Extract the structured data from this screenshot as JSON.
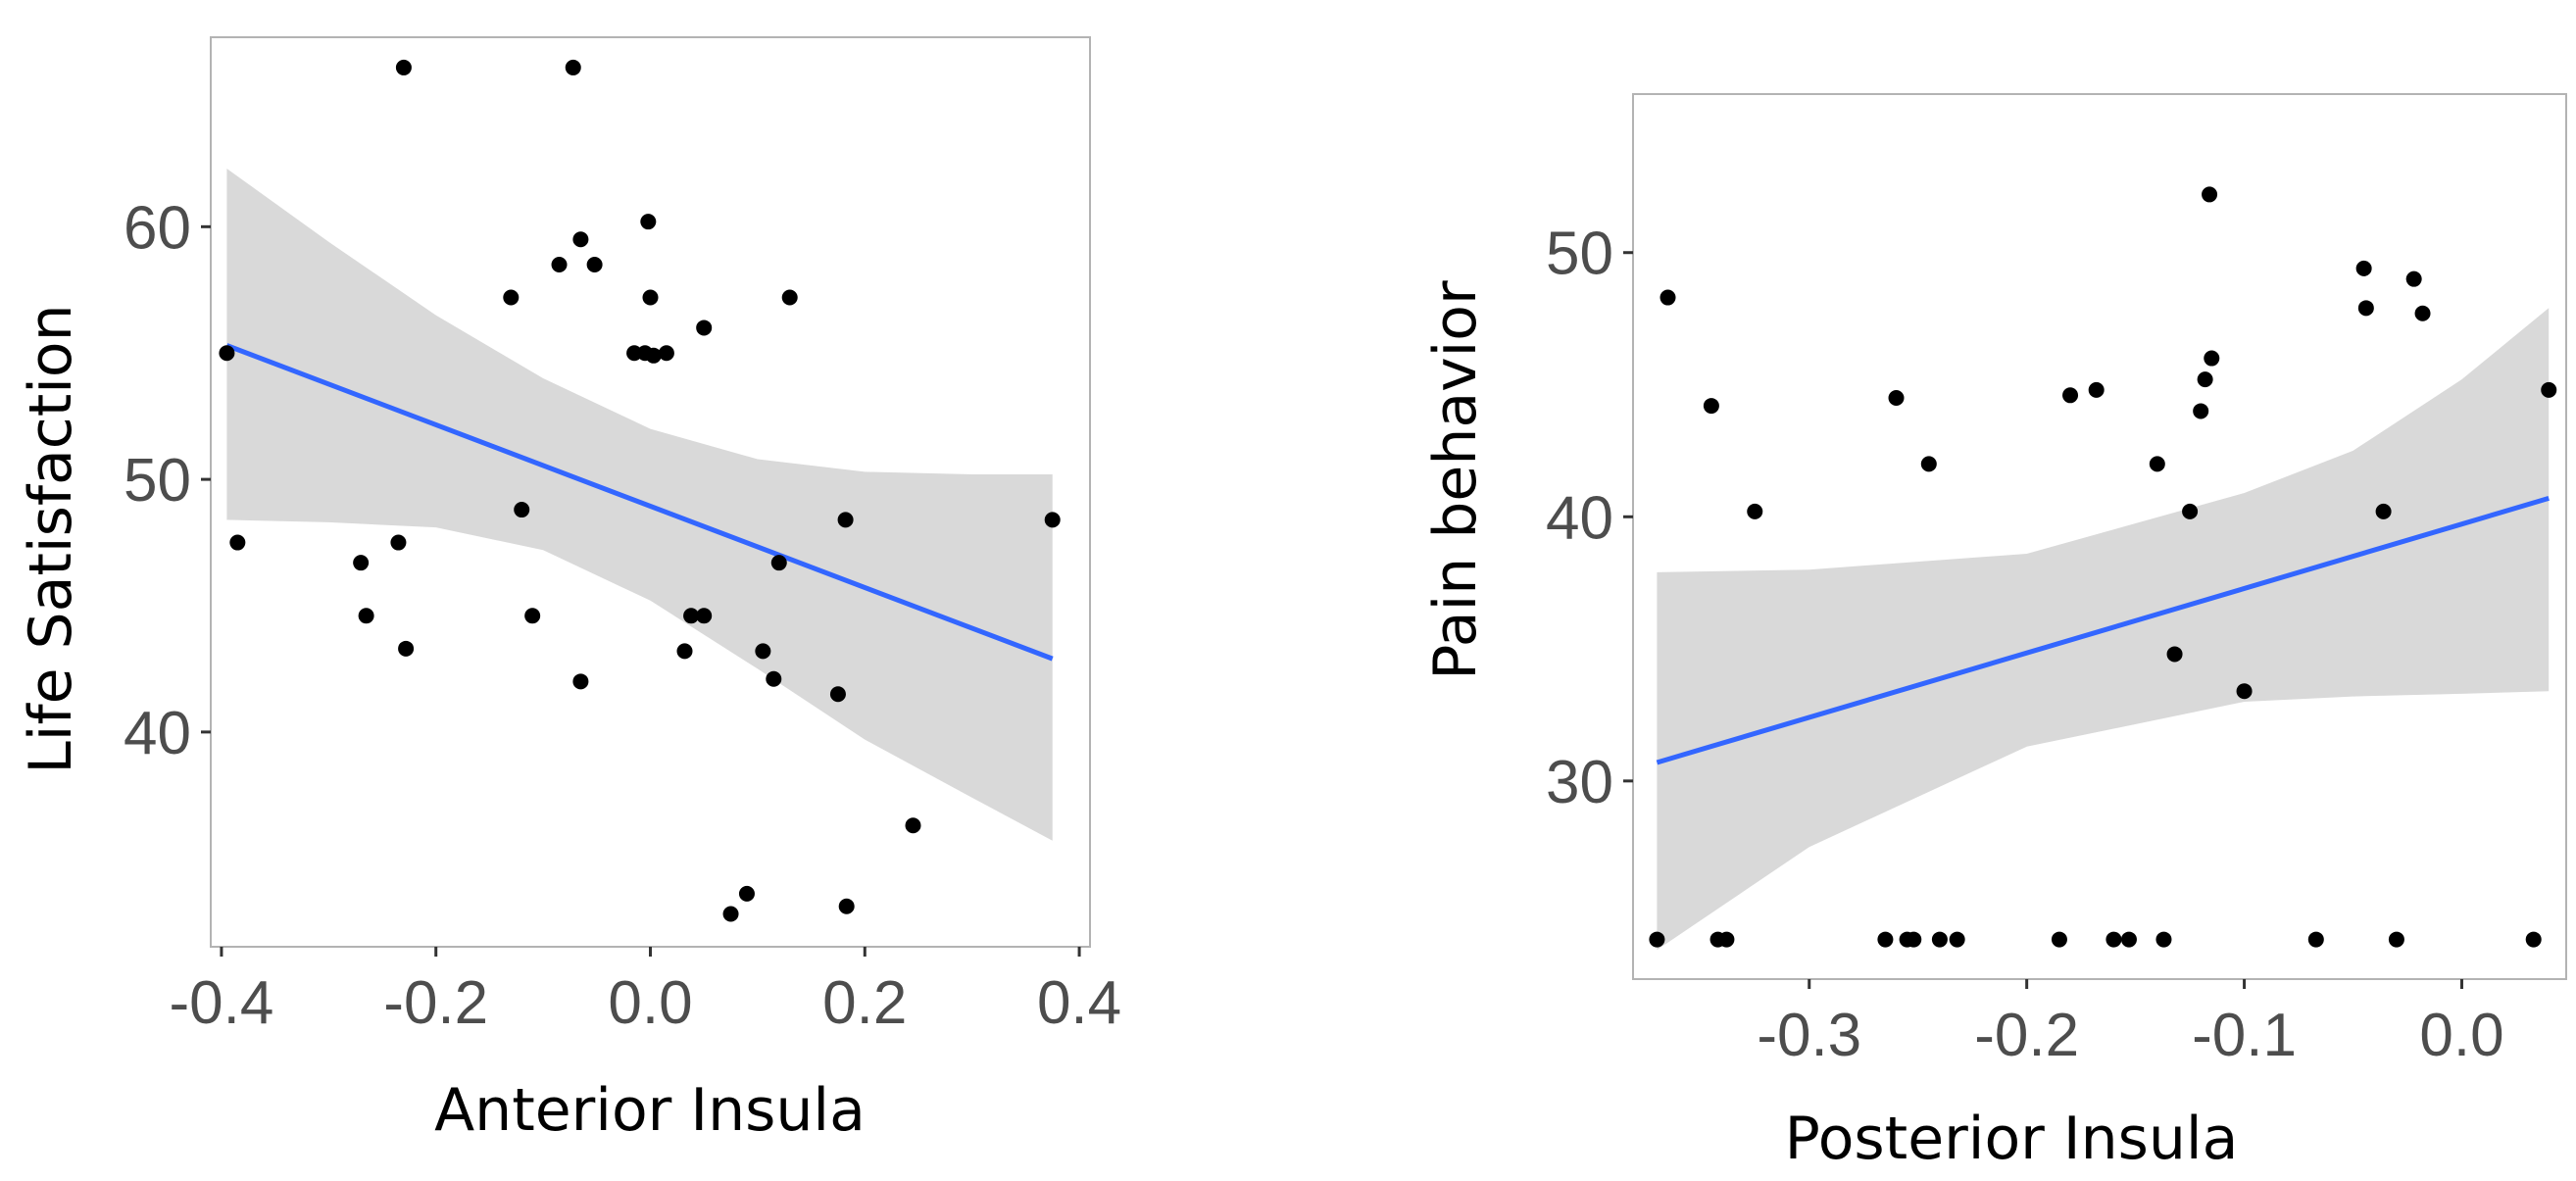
{
  "chart_data": [
    {
      "type": "scatter",
      "xlabel": "Anterior Insula",
      "ylabel": "Life Satisfaction",
      "xlim": [
        -0.41,
        0.41
      ],
      "ylim": [
        31.5,
        67.5
      ],
      "x_ticks": [
        -0.4,
        -0.2,
        0.0,
        0.2,
        0.4
      ],
      "x_tick_labels": [
        "-0.4",
        "-0.2",
        "0.0",
        "0.2",
        "0.4"
      ],
      "y_ticks": [
        40,
        50,
        60
      ],
      "y_tick_labels": [
        "40",
        "50",
        "60"
      ],
      "grid": false,
      "colors": {
        "points": "#000000",
        "fit": "#3366ff",
        "ribbon": "#d9d9d9",
        "panel_border": "#b3b3b3"
      },
      "points": [
        {
          "x": -0.395,
          "y": 55.0
        },
        {
          "x": -0.385,
          "y": 47.5
        },
        {
          "x": -0.27,
          "y": 46.7
        },
        {
          "x": -0.265,
          "y": 44.6
        },
        {
          "x": -0.235,
          "y": 47.5
        },
        {
          "x": -0.23,
          "y": 66.3
        },
        {
          "x": -0.228,
          "y": 43.3
        },
        {
          "x": -0.13,
          "y": 57.2
        },
        {
          "x": -0.12,
          "y": 48.8
        },
        {
          "x": -0.11,
          "y": 44.6
        },
        {
          "x": -0.085,
          "y": 58.5
        },
        {
          "x": -0.072,
          "y": 66.3
        },
        {
          "x": -0.065,
          "y": 59.5
        },
        {
          "x": -0.065,
          "y": 42.0
        },
        {
          "x": -0.052,
          "y": 58.5
        },
        {
          "x": -0.015,
          "y": 55.0
        },
        {
          "x": -0.005,
          "y": 55.0
        },
        {
          "x": -0.002,
          "y": 60.2
        },
        {
          "x": 0.0,
          "y": 57.2
        },
        {
          "x": 0.003,
          "y": 54.9
        },
        {
          "x": 0.015,
          "y": 55.0
        },
        {
          "x": 0.032,
          "y": 43.2
        },
        {
          "x": 0.038,
          "y": 44.6
        },
        {
          "x": 0.05,
          "y": 44.6
        },
        {
          "x": 0.05,
          "y": 56.0
        },
        {
          "x": 0.075,
          "y": 32.8
        },
        {
          "x": 0.09,
          "y": 33.6
        },
        {
          "x": 0.105,
          "y": 43.2
        },
        {
          "x": 0.115,
          "y": 42.1
        },
        {
          "x": 0.12,
          "y": 46.7
        },
        {
          "x": 0.13,
          "y": 57.2
        },
        {
          "x": 0.175,
          "y": 41.5
        },
        {
          "x": 0.182,
          "y": 48.4
        },
        {
          "x": 0.183,
          "y": 33.1
        },
        {
          "x": 0.245,
          "y": 36.3
        },
        {
          "x": 0.375,
          "y": 48.4
        }
      ],
      "fit_line": {
        "x": [
          -0.395,
          0.375
        ],
        "y": [
          55.3,
          42.9
        ]
      },
      "confidence_band": {
        "x": [
          -0.395,
          -0.3,
          -0.2,
          -0.1,
          0.0,
          0.1,
          0.2,
          0.3,
          0.375
        ],
        "upper": [
          62.3,
          59.4,
          56.5,
          54.0,
          52.0,
          50.8,
          50.3,
          50.2,
          50.2
        ],
        "lower": [
          48.4,
          48.3,
          48.1,
          47.2,
          45.2,
          42.5,
          39.7,
          37.4,
          35.7
        ]
      }
    },
    {
      "type": "scatter",
      "xlabel": "Posterior Insula",
      "ylabel": "Pain behavior",
      "xlim": [
        -0.381,
        0.048
      ],
      "ylim": [
        22.5,
        56.0
      ],
      "x_ticks": [
        -0.3,
        -0.2,
        -0.1,
        0.0
      ],
      "x_tick_labels": [
        "-0.3",
        "-0.2",
        "-0.1",
        "0.0"
      ],
      "y_ticks": [
        30,
        40,
        50
      ],
      "y_tick_labels": [
        "30",
        "40",
        "50"
      ],
      "grid": false,
      "colors": {
        "points": "#000000",
        "fit": "#3366ff",
        "ribbon": "#d9d9d9",
        "panel_border": "#b3b3b3"
      },
      "points": [
        {
          "x": -0.37,
          "y": 24.0
        },
        {
          "x": -0.365,
          "y": 48.3
        },
        {
          "x": -0.345,
          "y": 44.2
        },
        {
          "x": -0.342,
          "y": 24.0
        },
        {
          "x": -0.338,
          "y": 24.0
        },
        {
          "x": -0.325,
          "y": 40.2
        },
        {
          "x": -0.265,
          "y": 24.0
        },
        {
          "x": -0.26,
          "y": 44.5
        },
        {
          "x": -0.255,
          "y": 24.0
        },
        {
          "x": -0.252,
          "y": 24.0
        },
        {
          "x": -0.245,
          "y": 42.0
        },
        {
          "x": -0.24,
          "y": 24.0
        },
        {
          "x": -0.232,
          "y": 24.0
        },
        {
          "x": -0.185,
          "y": 24.0
        },
        {
          "x": -0.18,
          "y": 44.6
        },
        {
          "x": -0.168,
          "y": 44.8
        },
        {
          "x": -0.16,
          "y": 24.0
        },
        {
          "x": -0.153,
          "y": 24.0
        },
        {
          "x": -0.14,
          "y": 42.0
        },
        {
          "x": -0.137,
          "y": 24.0
        },
        {
          "x": -0.132,
          "y": 34.8
        },
        {
          "x": -0.125,
          "y": 40.2
        },
        {
          "x": -0.12,
          "y": 44.0
        },
        {
          "x": -0.118,
          "y": 45.2
        },
        {
          "x": -0.116,
          "y": 52.2
        },
        {
          "x": -0.115,
          "y": 46.0
        },
        {
          "x": -0.1,
          "y": 33.4
        },
        {
          "x": -0.067,
          "y": 24.0
        },
        {
          "x": -0.045,
          "y": 49.4
        },
        {
          "x": -0.044,
          "y": 47.9
        },
        {
          "x": -0.036,
          "y": 40.2
        },
        {
          "x": -0.03,
          "y": 24.0
        },
        {
          "x": -0.022,
          "y": 49.0
        },
        {
          "x": -0.018,
          "y": 47.7
        },
        {
          "x": 0.033,
          "y": 24.0
        },
        {
          "x": 0.04,
          "y": 44.8
        }
      ],
      "fit_line": {
        "x": [
          -0.37,
          0.04
        ],
        "y": [
          30.7,
          40.7
        ]
      },
      "confidence_band": {
        "x": [
          -0.37,
          -0.3,
          -0.2,
          -0.1,
          -0.05,
          0.0,
          0.04
        ],
        "upper": [
          37.9,
          38.0,
          38.6,
          40.9,
          42.5,
          45.2,
          47.9
        ],
        "lower": [
          23.6,
          27.5,
          31.3,
          33.0,
          33.2,
          33.3,
          33.4
        ]
      }
    }
  ]
}
